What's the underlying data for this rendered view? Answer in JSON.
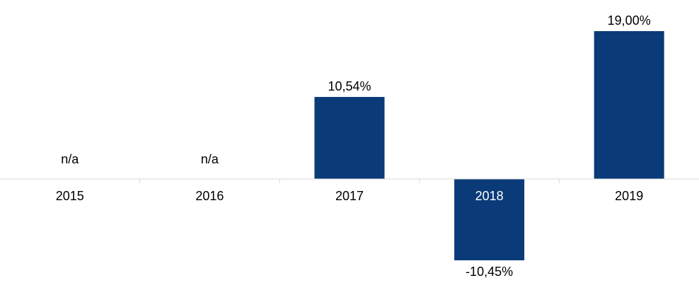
{
  "chart_data": {
    "type": "bar",
    "categories": [
      "2015",
      "2016",
      "2017",
      "2018",
      "2019"
    ],
    "values": [
      null,
      null,
      10.54,
      -10.45,
      19.0
    ],
    "data_labels": [
      "n/a",
      "n/a",
      "10,54%",
      "-10,45%",
      "19,00%"
    ],
    "title": "",
    "xlabel": "",
    "ylabel": "",
    "ylim": [
      -10.45,
      19.0
    ],
    "grid": false,
    "legend": "none",
    "colors": {
      "bar": "#0a3a78",
      "axis": "#d9d9d9",
      "text": "#000000",
      "label_on_bar": "#ffffff"
    }
  }
}
